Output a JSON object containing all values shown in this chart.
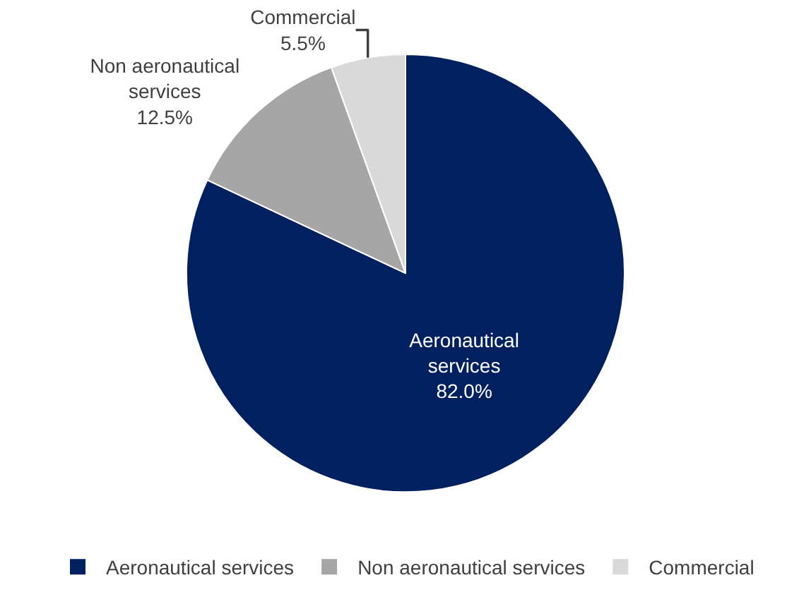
{
  "chart_data": {
    "type": "pie",
    "categories": [
      "Aeronautical services",
      "Non aeronautical services",
      "Commercial"
    ],
    "values": [
      82.0,
      12.5,
      5.5
    ],
    "value_labels": [
      "82.0%",
      "12.5%",
      "5.5%"
    ],
    "colors": [
      "#002060",
      "#a6a6a6",
      "#d9d9d9"
    ],
    "legend": "bottom"
  }
}
